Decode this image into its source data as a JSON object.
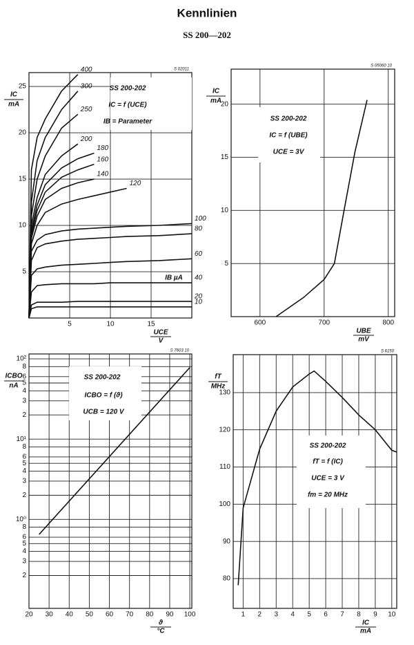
{
  "title": "Kennlinien",
  "subtitle": "SS 200—202",
  "chart_data": [
    {
      "type": "line",
      "code": "S 02011",
      "ylabel": "IC",
      "yunit": "mA",
      "xlabel": "UCE",
      "xunit": "V",
      "xlim": [
        0,
        20
      ],
      "ylim": [
        0,
        26.5
      ],
      "xticks": [
        5,
        10,
        15
      ],
      "yticks": [
        5,
        10,
        15,
        20,
        25
      ],
      "grid": true,
      "curve_labels": true,
      "annotations": [
        "SS 200-202",
        "IC = f (UCE)",
        "IB = Parameter",
        "IB µA"
      ],
      "x": [
        0,
        0.3,
        1,
        2,
        4,
        6,
        8,
        10,
        12,
        16,
        20
      ],
      "series": [
        {
          "name": "10",
          "color": "#111",
          "values": [
            0,
            1.0,
            1.2,
            1.2,
            1.2,
            1.2,
            1.2,
            1.2,
            1.2,
            1.2,
            1.2
          ]
        },
        {
          "name": "20",
          "color": "#111",
          "values": [
            0,
            1.4,
            1.7,
            1.7,
            1.7,
            1.8,
            1.8,
            1.8,
            1.8,
            1.8,
            1.8
          ]
        },
        {
          "name": "40",
          "color": "#111",
          "values": [
            0,
            2.8,
            3.5,
            3.6,
            3.7,
            3.7,
            3.7,
            3.8,
            3.8,
            3.8,
            3.8
          ]
        },
        {
          "name": "60",
          "color": "#111",
          "values": [
            0,
            4.6,
            5.3,
            5.5,
            5.7,
            5.8,
            5.9,
            6.0,
            6.1,
            6.2,
            6.4
          ]
        },
        {
          "name": "80",
          "color": "#111",
          "values": [
            0,
            6.2,
            7.6,
            8.0,
            8.3,
            8.5,
            8.6,
            8.7,
            8.8,
            8.9,
            9.1
          ]
        },
        {
          "name": "100",
          "color": "#111",
          "values": [
            0,
            7.2,
            8.4,
            9.0,
            9.4,
            9.6,
            9.7,
            9.8,
            9.9,
            10.0,
            10.2
          ]
        },
        {
          "name": "120",
          "color": "#111",
          "values": [
            0,
            8.0,
            10.0,
            11.4,
            12.3,
            12.8,
            13.2,
            13.6,
            14.0,
            null,
            null
          ]
        },
        {
          "name": "140",
          "color": "#111",
          "values": [
            0,
            8.6,
            11.0,
            12.8,
            14.0,
            14.6,
            15.0,
            null,
            null,
            null,
            null
          ]
        },
        {
          "name": "160",
          "color": "#111",
          "values": [
            0,
            9.0,
            11.6,
            13.6,
            15.2,
            16.0,
            16.6,
            null,
            null,
            null,
            null
          ]
        },
        {
          "name": "180",
          "color": "#111",
          "values": [
            0,
            9.4,
            12.2,
            14.4,
            16.2,
            17.2,
            17.8,
            null,
            null,
            null,
            null
          ]
        },
        {
          "name": "200",
          "color": "#111",
          "values": [
            0,
            10.0,
            13.0,
            15.5,
            17.5,
            18.8,
            null,
            null,
            null,
            null,
            null
          ]
        },
        {
          "name": "250",
          "color": "#111",
          "values": [
            0,
            11.0,
            15.0,
            17.5,
            20.5,
            22.0,
            null,
            null,
            null,
            null,
            null
          ]
        },
        {
          "name": "300",
          "color": "#111",
          "values": [
            0,
            12.5,
            17.0,
            19.5,
            22.5,
            24.5,
            null,
            null,
            null,
            null,
            null
          ]
        },
        {
          "name": "400",
          "color": "#111",
          "values": [
            0,
            16.0,
            19.5,
            21.5,
            24.5,
            26.3,
            null,
            null,
            null,
            null,
            null
          ]
        }
      ]
    },
    {
      "type": "line",
      "code": "S 05060 10",
      "ylabel": "IC",
      "yunit": "mA",
      "xlabel": "UBE",
      "xunit": "mV",
      "xlim": [
        555,
        810
      ],
      "ylim": [
        0,
        23.3
      ],
      "xticks": [
        600,
        700,
        800
      ],
      "yticks": [
        5,
        10,
        15,
        20
      ],
      "grid": true,
      "annotations": [
        "SS 200-202",
        "IC = f (UBE)",
        "UCE = 3V"
      ],
      "x": [
        625,
        668,
        700,
        716,
        732,
        748,
        767
      ],
      "series": [
        {
          "color": "#111",
          "values": [
            0,
            1.8,
            3.5,
            5,
            10.3,
            15.5,
            20.4
          ]
        }
      ]
    },
    {
      "type": "line",
      "code": "S 7603 10",
      "ylog": true,
      "ylabel": "ICBO",
      "yunit": "nA",
      "xlabel": "ϑ",
      "xunit": "°C",
      "xlim": [
        20,
        101
      ],
      "ylim": [
        0.078,
        115
      ],
      "xticks": [
        20,
        30,
        40,
        50,
        60,
        70,
        80,
        90,
        100
      ],
      "yticks": [
        {
          "value": 100,
          "label": "10²"
        },
        {
          "value": 80,
          "label": "8"
        },
        {
          "value": 60,
          "label": "6"
        },
        {
          "value": 50,
          "label": "5"
        },
        {
          "value": 40,
          "label": "4"
        },
        {
          "value": 30,
          "label": "3"
        },
        {
          "value": 20,
          "label": "2"
        },
        {
          "value": 10,
          "label": "10¹"
        },
        {
          "value": 8,
          "label": "8"
        },
        {
          "value": 6,
          "label": "6"
        },
        5,
        4,
        3,
        2,
        {
          "value": 1,
          "label": "10⁰"
        },
        {
          "value": 0.8,
          "label": "8"
        },
        {
          "value": 0.6,
          "label": "6"
        },
        {
          "value": 0.5,
          "label": "5"
        },
        {
          "value": 0.4,
          "label": "4"
        },
        {
          "value": 0.3,
          "label": "3"
        },
        {
          "value": 0.2,
          "label": "2"
        }
      ],
      "grid": true,
      "annotations": [
        "SS 200-202",
        "ICBO = f (ϑ)",
        "UCB = 120 V"
      ],
      "x": [
        25,
        100
      ],
      "series": [
        {
          "color": "#111",
          "values": [
            0.65,
            78
          ]
        }
      ]
    },
    {
      "type": "line",
      "code": "S 6150",
      "ylabel": "fT",
      "yunit": "MHz",
      "xlabel": "IC",
      "xunit": "mA",
      "xlim": [
        0.4,
        10.3
      ],
      "ylim": [
        72,
        140.2
      ],
      "xticks": [
        1,
        2,
        3,
        4,
        5,
        6,
        7,
        8,
        9,
        10
      ],
      "yticks": [
        80,
        90,
        100,
        110,
        120,
        130
      ],
      "grid": true,
      "annotations": [
        "SS 200-202",
        "fT = f (IC)",
        "UCE = 3 V",
        "fm = 20 MHz"
      ],
      "x": [
        0.7,
        1,
        2,
        3,
        4,
        5,
        5.3,
        6,
        7,
        8,
        9,
        10,
        10.3
      ],
      "series": [
        {
          "color": "#111",
          "values": [
            78.2,
            99,
            114.8,
            125,
            131.5,
            135,
            135.8,
            133,
            128.7,
            124,
            120,
            114.5,
            114
          ]
        }
      ]
    }
  ]
}
